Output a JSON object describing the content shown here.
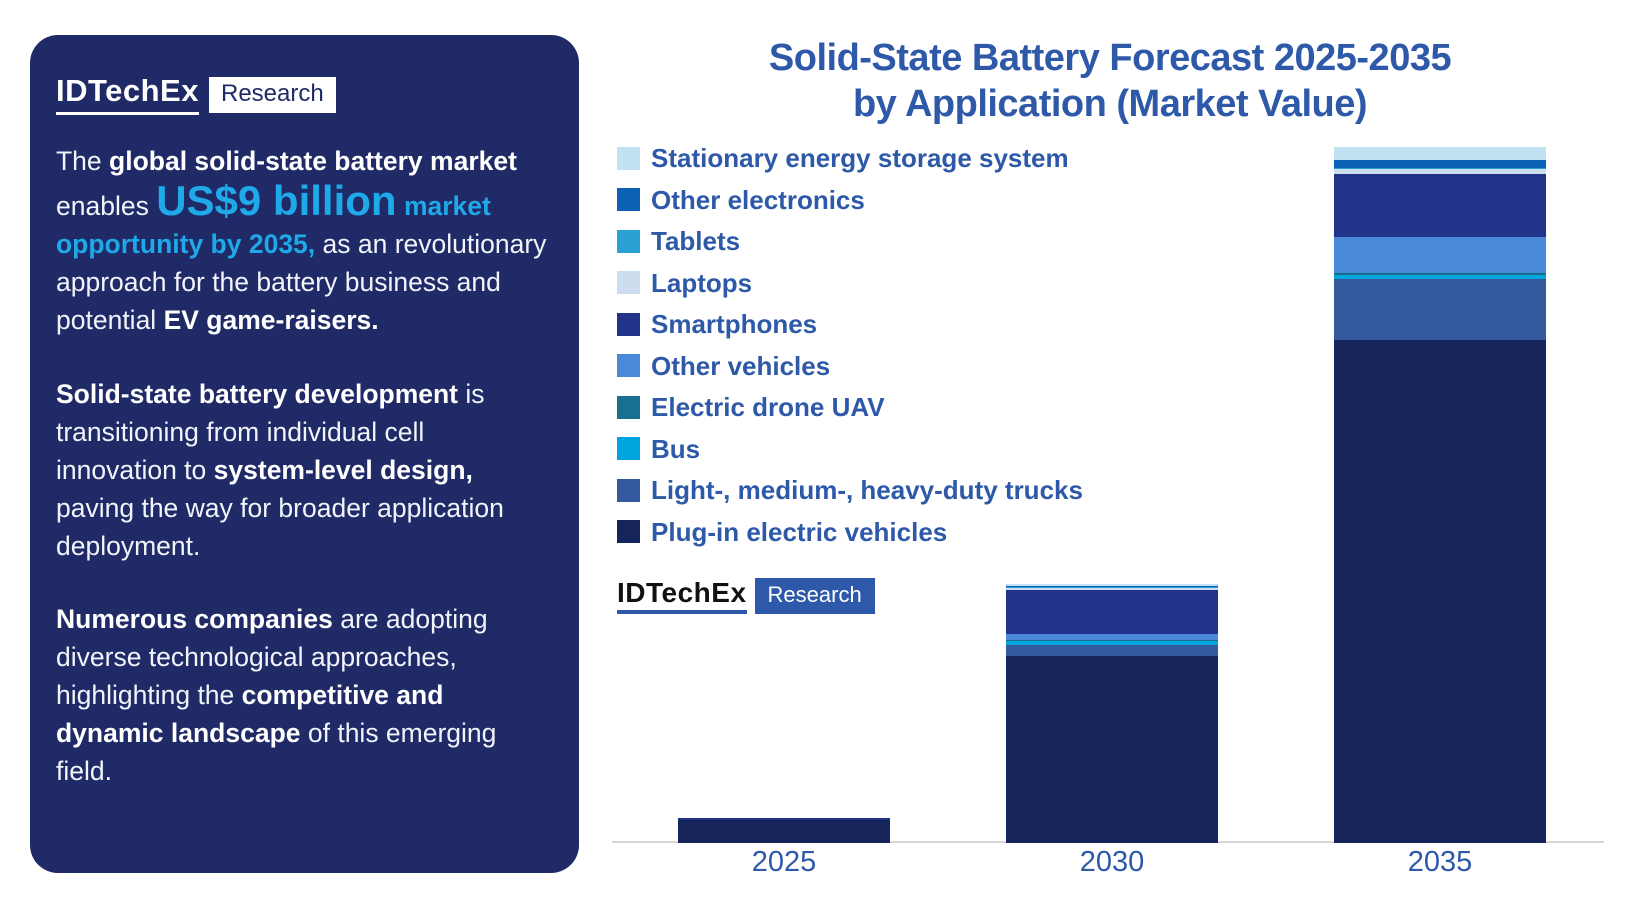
{
  "panel": {
    "logo": {
      "brand": "IDTechEx",
      "badge": "Research"
    },
    "paragraph1": [
      {
        "t": "The ",
        "s": "r"
      },
      {
        "t": "global solid-state battery market",
        "s": "b"
      },
      {
        "t": " enables ",
        "s": "r"
      },
      {
        "t": "US$9 billion",
        "s": "xl"
      },
      {
        "t": " market opportunity by 2035,",
        "s": "c"
      },
      {
        "t": " as an revolutionary approach for the battery business and potential ",
        "s": "r"
      },
      {
        "t": "EV game-raisers.",
        "s": "b"
      }
    ],
    "paragraph2": [
      {
        "t": "Solid-state battery development",
        "s": "b"
      },
      {
        "t": " is transitioning from individual cell innovation to ",
        "s": "r"
      },
      {
        "t": "system-level design,",
        "s": "b"
      },
      {
        "t": " paving the way for broader application deployment.",
        "s": "r"
      }
    ],
    "paragraph3": [
      {
        "t": "Numerous companies",
        "s": "b"
      },
      {
        "t": " are adopting diverse technological approaches, highlighting the ",
        "s": "r"
      },
      {
        "t": "competitive and dynamic landscape",
        "s": "b"
      },
      {
        "t": " of this emerging field.",
        "s": "r"
      }
    ]
  },
  "chart": {
    "title_line1": "Solid-State Battery Forecast 2025-2035",
    "title_line2": "by Application (Market Value)",
    "logo": {
      "brand": "IDTechEx",
      "badge": "Research"
    }
  },
  "colors": {
    "panel_bg": "#1f2a66",
    "cyan_accent": "#1fa9e8",
    "chart_blue_text": "#2d59a8",
    "axis_line": "#d6d6d6"
  },
  "chart_data": {
    "type": "bar",
    "stacked": true,
    "title": "Solid-State Battery Forecast 2025-2035 by Application (Market Value)",
    "categories": [
      "2025",
      "2030",
      "2035"
    ],
    "value_unit": "US$ billion (estimated from bar heights; no value axis shown; 2035 total stated as US$9 billion)",
    "legend_position": "upper-left",
    "grid": false,
    "series": [
      {
        "name": "Stationary energy storage system",
        "color": "#c2e2f4",
        "values": [
          0,
          0.03,
          0.17
        ]
      },
      {
        "name": "Other electronics",
        "color": "#0b61b4",
        "values": [
          0,
          0.02,
          0.1
        ]
      },
      {
        "name": "Tablets",
        "color": "#2ba0d4",
        "values": [
          0,
          0.01,
          0.02
        ]
      },
      {
        "name": "Laptops",
        "color": "#ccddf0",
        "values": [
          0,
          0.02,
          0.06
        ]
      },
      {
        "name": "Smartphones",
        "color": "#22338c",
        "values": [
          0.03,
          0.57,
          0.82
        ]
      },
      {
        "name": "Other vehicles",
        "color": "#4a89d8",
        "values": [
          0,
          0.08,
          0.47
        ]
      },
      {
        "name": "Electric drone UAV",
        "color": "#17708f",
        "values": [
          0,
          0.01,
          0.02
        ]
      },
      {
        "name": "Bus",
        "color": "#00a5e0",
        "values": [
          0,
          0.06,
          0.06
        ]
      },
      {
        "name": "Light-, medium-, heavy-duty trucks",
        "color": "#35599f",
        "values": [
          0,
          0.14,
          0.79
        ]
      },
      {
        "name": "Plug-in electric vehicles",
        "color": "#16245c",
        "values": [
          0.3,
          2.43,
          6.53
        ]
      }
    ],
    "totals": [
      0.33,
      3.37,
      9.04
    ]
  }
}
